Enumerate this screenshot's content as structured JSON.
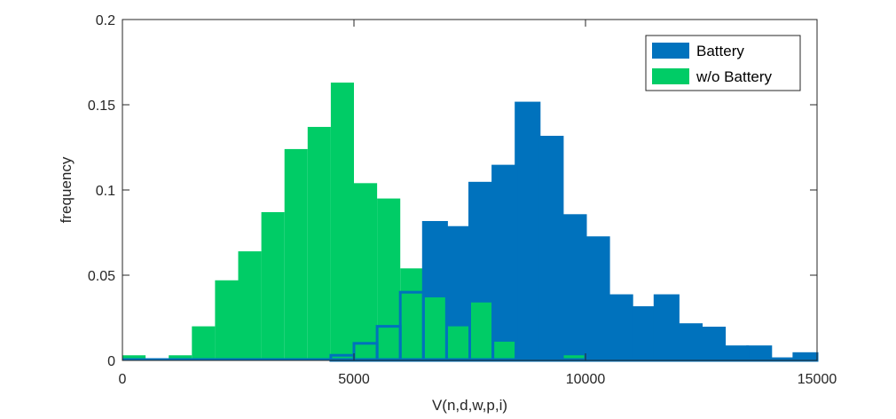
{
  "chart_data": {
    "type": "bar",
    "title": "",
    "xlabel": "V(n,d,w,p,i)",
    "ylabel": "frequency",
    "xlim": [
      0,
      15000
    ],
    "ylim": [
      0,
      0.2
    ],
    "xticks": [
      0,
      5000,
      10000,
      15000
    ],
    "yticks": [
      0,
      0.05,
      0.1,
      0.15,
      0.2
    ],
    "xtick_labels": [
      "0",
      "5000",
      "10000",
      "15000"
    ],
    "ytick_labels": [
      "0",
      "0.05",
      "0.1",
      "0.15",
      "0.2"
    ],
    "bin_width": 500,
    "legend_position": "top-right",
    "grid": false,
    "series": [
      {
        "name": "Battery",
        "color": "#0072BD",
        "bins": [
          [
            4500,
            5000,
            0.003
          ],
          [
            5000,
            5500,
            0.01
          ],
          [
            5500,
            6000,
            0.02
          ],
          [
            6000,
            6500,
            0.04
          ],
          [
            6500,
            7000,
            0.081
          ],
          [
            7000,
            7500,
            0.078
          ],
          [
            7500,
            8000,
            0.104
          ],
          [
            8000,
            8500,
            0.114
          ],
          [
            8500,
            9000,
            0.151
          ],
          [
            9000,
            9500,
            0.131
          ],
          [
            9500,
            10000,
            0.085
          ],
          [
            10000,
            10500,
            0.072
          ],
          [
            10500,
            11000,
            0.038
          ],
          [
            11000,
            11500,
            0.031
          ],
          [
            11500,
            12000,
            0.038
          ],
          [
            12000,
            12500,
            0.021
          ],
          [
            12500,
            13000,
            0.019
          ],
          [
            13000,
            13500,
            0.008
          ],
          [
            13500,
            14000,
            0.008
          ],
          [
            14000,
            14500,
            0.001
          ],
          [
            14500,
            15000,
            0.004
          ]
        ]
      },
      {
        "name": "w/o Battery",
        "color": "#00CC66",
        "bins": [
          [
            0,
            500,
            0.003
          ],
          [
            1000,
            1500,
            0.003
          ],
          [
            1500,
            2000,
            0.02
          ],
          [
            2000,
            2500,
            0.047
          ],
          [
            2500,
            3000,
            0.064
          ],
          [
            3000,
            3500,
            0.087
          ],
          [
            3500,
            4000,
            0.124
          ],
          [
            4000,
            4500,
            0.137
          ],
          [
            4500,
            5000,
            0.163
          ],
          [
            5000,
            5500,
            0.104
          ],
          [
            5500,
            6000,
            0.095
          ],
          [
            6000,
            6500,
            0.054
          ],
          [
            6500,
            7000,
            0.037
          ],
          [
            7000,
            7500,
            0.02
          ],
          [
            7500,
            8000,
            0.034
          ],
          [
            8000,
            8500,
            0.011
          ],
          [
            9500,
            10000,
            0.003
          ]
        ]
      }
    ]
  }
}
